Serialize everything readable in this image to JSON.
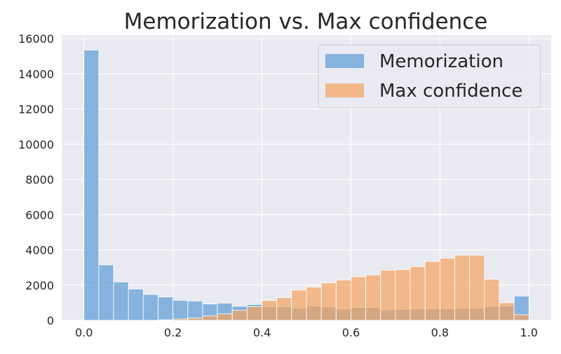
{
  "chart_data": {
    "type": "bar",
    "title": "Memorization vs. Max confidence",
    "xlabel": "",
    "ylabel": "",
    "xlim": [
      -0.05,
      1.05
    ],
    "ylim": [
      0,
      16200
    ],
    "x_ticks": [
      0.0,
      0.2,
      0.4,
      0.6,
      0.8,
      1.0
    ],
    "x_tick_labels": [
      "0.0",
      "0.2",
      "0.4",
      "0.6",
      "0.8",
      "1.0"
    ],
    "y_ticks": [
      0,
      2000,
      4000,
      6000,
      8000,
      10000,
      12000,
      14000,
      16000
    ],
    "y_tick_labels": [
      "0",
      "2000",
      "4000",
      "6000",
      "8000",
      "10000",
      "12000",
      "14000",
      "16000"
    ],
    "grid": true,
    "legend_position": "top-right",
    "bin_width": 0.0333,
    "bin_starts": [
      0.0,
      0.0333,
      0.0667,
      0.1,
      0.1333,
      0.1667,
      0.2,
      0.2333,
      0.2667,
      0.3,
      0.3333,
      0.3667,
      0.4,
      0.4333,
      0.4667,
      0.5,
      0.5333,
      0.5667,
      0.6,
      0.6333,
      0.6667,
      0.7,
      0.7333,
      0.7667,
      0.8,
      0.8333,
      0.8667,
      0.9,
      0.9333,
      0.9667
    ],
    "series": [
      {
        "name": "Memorization",
        "color": "#5b9bd5",
        "values": [
          15350,
          3150,
          2180,
          1780,
          1470,
          1330,
          1140,
          1100,
          930,
          980,
          800,
          900,
          770,
          770,
          700,
          810,
          760,
          650,
          730,
          720,
          600,
          630,
          640,
          650,
          660,
          680,
          690,
          800,
          810,
          1380
        ]
      },
      {
        "name": "Max confidence",
        "color": "#f5a25d",
        "values": [
          0,
          0,
          0,
          0,
          0,
          30,
          80,
          130,
          250,
          370,
          570,
          780,
          1130,
          1290,
          1720,
          1890,
          2130,
          2290,
          2470,
          2580,
          2850,
          2880,
          3050,
          3340,
          3530,
          3700,
          3700,
          2340,
          1000,
          320
        ]
      }
    ],
    "colors": {
      "background": "#eaeaf2",
      "grid": "#ffffff",
      "text": "#262626",
      "legend_bg": "#eaeaf2",
      "legend_border": "#cccccc"
    }
  }
}
